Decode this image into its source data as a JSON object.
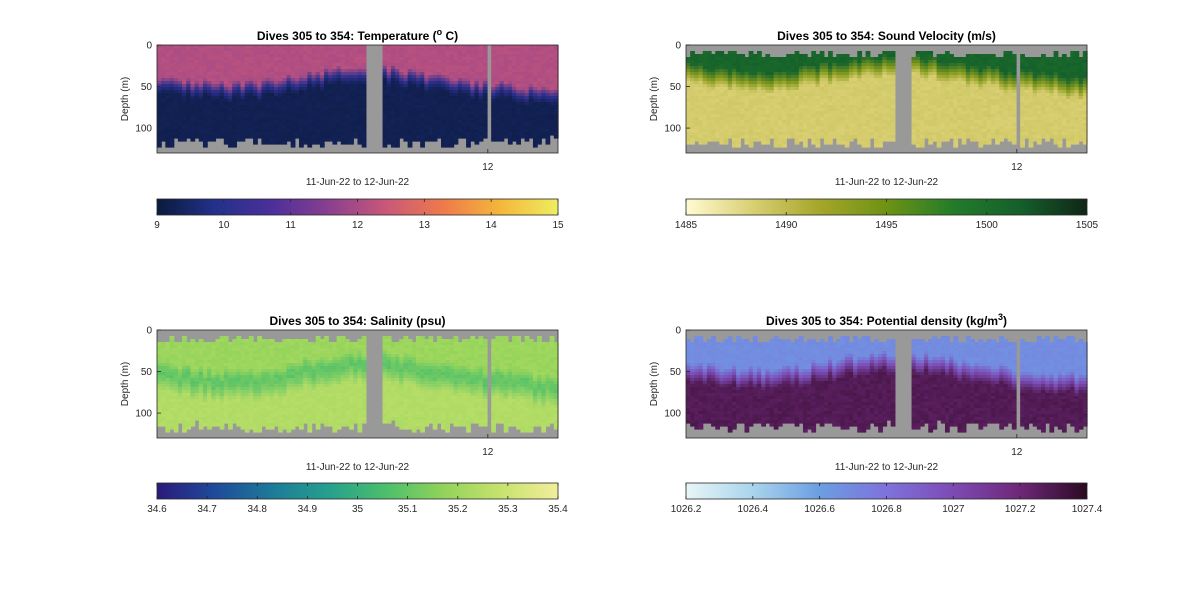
{
  "figure": {
    "panels": [
      {
        "id": "temperature",
        "title_prefix": "Dives 305 to 354: Temperature (",
        "title_sup": "o",
        "title_suffix": " C)",
        "ylabel": "Depth (m)",
        "yticks": [
          "0",
          "50",
          "100"
        ],
        "xtick": "12",
        "xlabel": "11-Jun-22 to 12-Jun-22",
        "colorbar": {
          "ticks": [
            "9",
            "10",
            "11",
            "12",
            "13",
            "14",
            "15"
          ],
          "stops": [
            "#0b1a3c",
            "#22318a",
            "#4b2f9a",
            "#8a3f8f",
            "#c9587a",
            "#ee7a4a",
            "#f4b73c",
            "#eeee60"
          ]
        }
      },
      {
        "id": "sound-velocity",
        "title_prefix": "Dives 305 to 354: Sound Velocity (m/s)",
        "title_sup": "",
        "title_suffix": "",
        "ylabel": "Depth (m)",
        "yticks": [
          "0",
          "50",
          "100"
        ],
        "xtick": "12",
        "xlabel": "11-Jun-22 to 12-Jun-22",
        "colorbar": {
          "ticks": [
            "1485",
            "1490",
            "1495",
            "1500",
            "1505"
          ],
          "stops": [
            "#fffbd1",
            "#d9cf73",
            "#a5a62a",
            "#6e9214",
            "#237c2a",
            "#155f2b",
            "#0f2617"
          ]
        }
      },
      {
        "id": "salinity",
        "title_prefix": "Dives 305 to 354: Salinity (psu)",
        "title_sup": "",
        "title_suffix": "",
        "ylabel": "Depth (m)",
        "yticks": [
          "0",
          "50",
          "100"
        ],
        "xtick": "12",
        "xlabel": "11-Jun-22 to 12-Jun-22",
        "colorbar": {
          "ticks": [
            "34.6",
            "34.7",
            "34.8",
            "34.9",
            "35",
            "35.1",
            "35.2",
            "35.3",
            "35.4"
          ],
          "stops": [
            "#2a1a7a",
            "#1f4a9a",
            "#1d7a9a",
            "#26a08c",
            "#4cbf6c",
            "#92d35a",
            "#c7e26e",
            "#f2ee9c"
          ]
        }
      },
      {
        "id": "potential-density",
        "title_prefix": "Dives 305 to 354: Potential density (kg/m",
        "title_sup": "3",
        "title_suffix": ")",
        "ylabel": "Depth (m)",
        "yticks": [
          "0",
          "50",
          "100"
        ],
        "xtick": "12",
        "xlabel": "11-Jun-22 to 12-Jun-22",
        "colorbar": {
          "ticks": [
            "1026.2",
            "1026.4",
            "1026.6",
            "1026.8",
            "1027",
            "1027.2",
            "1027.4"
          ],
          "stops": [
            "#e8f6f6",
            "#a9d4ec",
            "#6b9ee2",
            "#7f72dc",
            "#7d4ab4",
            "#6e2778",
            "#2a0a22"
          ]
        }
      }
    ]
  },
  "chart_data": [
    {
      "type": "heatmap",
      "title": "Dives 305 to 354: Temperature (o C)",
      "ylabel": "Depth (m)",
      "xlabel": "11-Jun-22 to 12-Jun-22",
      "y_direction": "depth increasing downward",
      "ylim": [
        0,
        130
      ],
      "x_tick_labels": [
        "12"
      ],
      "colorbar_range": [
        9,
        15
      ],
      "colormap": "thermal",
      "layers": [
        {
          "name": "surface layer",
          "value_approx": 12.0,
          "depth_range_m": [
            0,
            35
          ]
        },
        {
          "name": "bottom layer",
          "value_approx": 9.5,
          "depth_range_m": [
            55,
            125
          ]
        }
      ],
      "no_data_color": "#999999"
    },
    {
      "type": "heatmap",
      "title": "Dives 305 to 354: Sound Velocity (m/s)",
      "ylabel": "Depth (m)",
      "xlabel": "11-Jun-22 to 12-Jun-22",
      "ylim": [
        0,
        130
      ],
      "x_tick_labels": [
        "12"
      ],
      "colorbar_range": [
        1485,
        1505
      ],
      "colormap": "speed",
      "layers": [
        {
          "name": "surface layer",
          "value_approx": 1501,
          "depth_range_m": [
            10,
            30
          ]
        },
        {
          "name": "bottom layer",
          "value_approx": 1489,
          "depth_range_m": [
            45,
            110
          ]
        }
      ],
      "no_data_color": "#999999"
    },
    {
      "type": "heatmap",
      "title": "Dives 305 to 354: Salinity (psu)",
      "ylabel": "Depth (m)",
      "xlabel": "11-Jun-22 to 12-Jun-22",
      "ylim": [
        0,
        130
      ],
      "x_tick_labels": [
        "12"
      ],
      "colorbar_range": [
        34.6,
        35.4
      ],
      "colormap": "haline",
      "layers": [
        {
          "name": "upper water",
          "value_approx": 35.3,
          "depth_range_m": [
            10,
            40
          ]
        },
        {
          "name": "mid-depth minimum",
          "value_approx": 35.2,
          "depth_range_m": [
            40,
            60
          ]
        },
        {
          "name": "lower water",
          "value_approx": 35.3,
          "depth_range_m": [
            60,
            110
          ]
        }
      ],
      "no_data_color": "#999999"
    },
    {
      "type": "heatmap",
      "title": "Dives 305 to 354: Potential density (kg/m3)",
      "ylabel": "Depth (m)",
      "xlabel": "11-Jun-22 to 12-Jun-22",
      "ylim": [
        0,
        130
      ],
      "x_tick_labels": [
        "12"
      ],
      "colorbar_range": [
        1026.2,
        1027.4
      ],
      "colormap": "dense",
      "layers": [
        {
          "name": "surface layer",
          "value_approx": 1026.7,
          "depth_range_m": [
            10,
            35
          ]
        },
        {
          "name": "bottom layer",
          "value_approx": 1027.3,
          "depth_range_m": [
            50,
            110
          ]
        }
      ],
      "no_data_color": "#999999"
    }
  ]
}
